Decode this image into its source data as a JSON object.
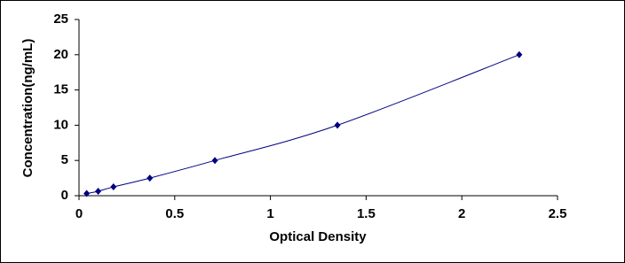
{
  "chart_data": {
    "type": "line",
    "x_label": "Optical Density",
    "y_label": "Concentration(ng/mL)",
    "x": [
      0.04,
      0.1,
      0.18,
      0.37,
      0.71,
      1.35,
      2.3
    ],
    "series": [
      {
        "color": "#000080",
        "values": [
          0.31,
          0.63,
          1.25,
          2.5,
          5,
          10,
          20
        ]
      }
    ],
    "xlim": [
      0,
      2.5
    ],
    "xticks": [
      0,
      0.5,
      1,
      1.5,
      2,
      2.5
    ],
    "ylim": [
      0,
      25
    ],
    "yticks": [
      0,
      5,
      10,
      15,
      20,
      25
    ],
    "grid": false,
    "smooth": true,
    "marker": "diamond"
  }
}
